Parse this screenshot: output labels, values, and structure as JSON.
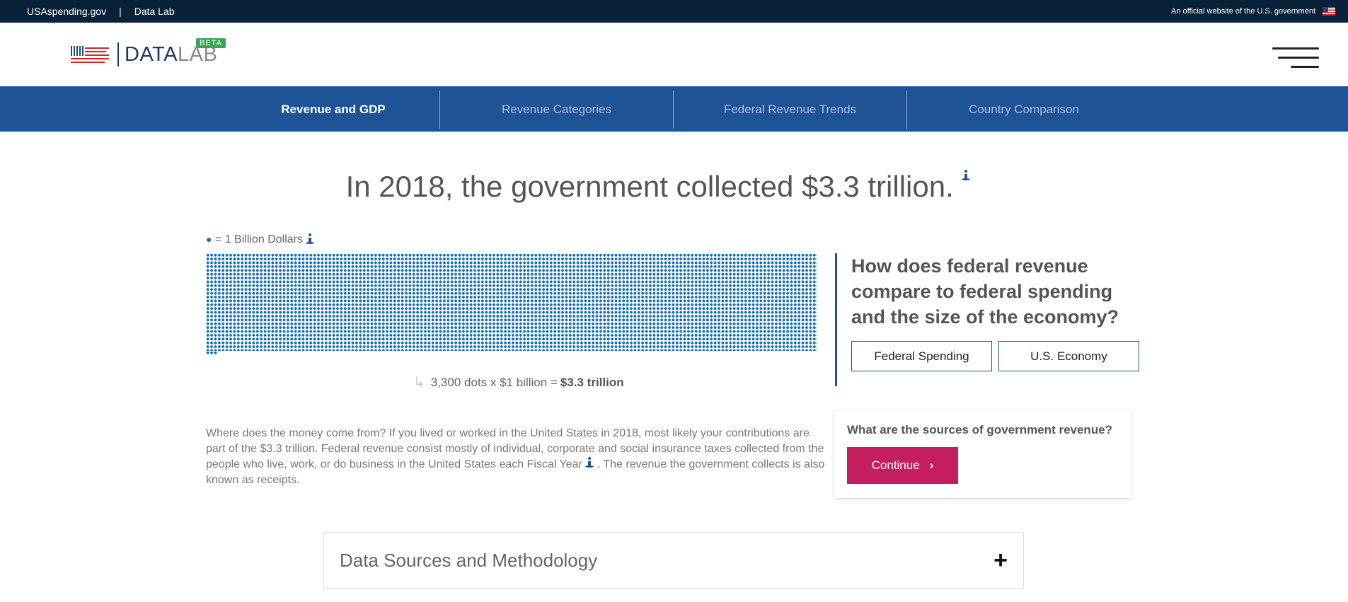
{
  "topbar": {
    "site_link": "USAspending.gov",
    "separator": "|",
    "datalab_link": "Data Lab",
    "official_text": "An official website of the U.S. government",
    "flag_icon": "us-flag-icon"
  },
  "header": {
    "logo_data": "DATA",
    "logo_lab": "LAB",
    "beta_badge": "BETA",
    "menu_icon": "hamburger-menu-icon"
  },
  "nav": {
    "tabs": [
      {
        "label": "Revenue and GDP",
        "active": true
      },
      {
        "label": "Revenue Categories",
        "active": false
      },
      {
        "label": "Federal Revenue Trends",
        "active": false
      },
      {
        "label": "Country Comparison",
        "active": false
      }
    ]
  },
  "main": {
    "headline": "In 2018, the government collected $3.3 trillion.",
    "legend_dot": "●",
    "legend_text": "= 1 Billion Dollars",
    "dot_count": 3300,
    "caption_arrow": "↳",
    "caption_text": "3,300 dots x $1 billion =",
    "caption_total": "$3.3 trillion",
    "side_question": "How does federal revenue compare to federal spending and the size of the economy?",
    "btn_spending": "Federal Spending",
    "btn_economy": "U.S. Economy",
    "paragraph_part1": "Where does the money come from? If you lived or worked in the United States in 2018, most likely your contributions are part of the $3.3 trillion. Federal revenue consist mostly of individual, corporate and social insurance taxes collected from the people who live, work, or do business in the United States each Fiscal Year",
    "paragraph_part2": ". The revenue the government collects is also known as receipts.",
    "card_question": "What are the sources of government revenue?",
    "continue_label": "Continue",
    "continue_chevron": "›",
    "accordion_title": "Data Sources and Methodology",
    "accordion_plus": "+"
  },
  "colors": {
    "nav_blue": "#1e5496",
    "dot_blue": "#1a6fb4",
    "continue_magenta": "#c41e5e",
    "topbar_navy": "#0a2239"
  }
}
